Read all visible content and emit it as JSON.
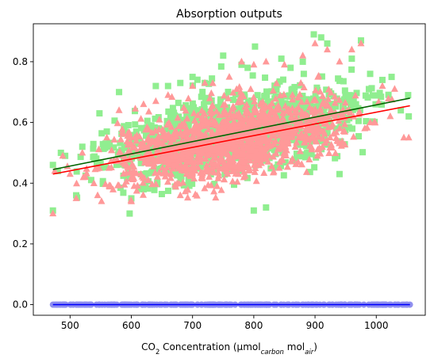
{
  "chart_data": {
    "type": "scatter",
    "title": "Absorption outputs",
    "xlabel": {
      "parts": [
        "CO",
        "2",
        " Concentration (μmol",
        "carbon",
        " mol",
        "air",
        ")"
      ]
    },
    "ylabel": "",
    "xlim": [
      440,
      1080
    ],
    "ylim": [
      -0.035,
      0.925
    ],
    "x_ticks": [
      500,
      600,
      700,
      800,
      900,
      1000
    ],
    "y_ticks": [
      0.0,
      0.2,
      0.4,
      0.6,
      0.8
    ],
    "y_tick_labels": [
      "0.0",
      "0.2",
      "0.4",
      "0.6",
      "0.8"
    ],
    "grid": false,
    "legend": "none",
    "series": [
      {
        "marker": "square",
        "color": "#90ee90",
        "x_range": [
          472,
          1055
        ],
        "points_sample": [
          [
            472,
            0.46
          ],
          [
            472,
            0.31
          ],
          [
            480,
            0.44
          ],
          [
            485,
            0.5
          ],
          [
            492,
            0.49
          ],
          [
            510,
            0.36
          ],
          [
            520,
            0.52
          ],
          [
            540,
            0.48
          ],
          [
            548,
            0.63
          ],
          [
            560,
            0.57
          ],
          [
            580,
            0.7
          ],
          [
            600,
            0.35
          ],
          [
            620,
            0.38
          ],
          [
            640,
            0.72
          ],
          [
            660,
            0.72
          ],
          [
            680,
            0.73
          ],
          [
            700,
            0.75
          ],
          [
            720,
            0.73
          ],
          [
            750,
            0.82
          ],
          [
            780,
            0.79
          ],
          [
            790,
            0.78
          ],
          [
            802,
            0.85
          ],
          [
            800,
            0.31
          ],
          [
            820,
            0.32
          ],
          [
            845,
            0.81
          ],
          [
            860,
            0.78
          ],
          [
            880,
            0.8
          ],
          [
            898,
            0.89
          ],
          [
            910,
            0.88
          ],
          [
            920,
            0.86
          ],
          [
            940,
            0.43
          ],
          [
            960,
            0.81
          ],
          [
            975,
            0.87
          ],
          [
            990,
            0.76
          ],
          [
            1010,
            0.74
          ],
          [
            1025,
            0.75
          ],
          [
            1040,
            0.64
          ],
          [
            1052,
            0.69
          ],
          [
            1053,
            0.62
          ]
        ],
        "trend": {
          "x": [
            472,
            1055
          ],
          "y": [
            0.445,
            0.68
          ],
          "color": "#006400"
        }
      },
      {
        "marker": "triangle",
        "color": "#ff9999",
        "x_range": [
          472,
          1055
        ],
        "points_sample": [
          [
            472,
            0.3
          ],
          [
            475,
            0.44
          ],
          [
            488,
            0.49
          ],
          [
            500,
            0.43
          ],
          [
            510,
            0.35
          ],
          [
            520,
            0.5
          ],
          [
            545,
            0.36
          ],
          [
            560,
            0.55
          ],
          [
            580,
            0.64
          ],
          [
            600,
            0.34
          ],
          [
            620,
            0.66
          ],
          [
            640,
            0.67
          ],
          [
            660,
            0.69
          ],
          [
            680,
            0.36
          ],
          [
            700,
            0.72
          ],
          [
            720,
            0.73
          ],
          [
            740,
            0.39
          ],
          [
            760,
            0.75
          ],
          [
            780,
            0.8
          ],
          [
            800,
            0.79
          ],
          [
            820,
            0.8
          ],
          [
            850,
            0.79
          ],
          [
            880,
            0.82
          ],
          [
            900,
            0.86
          ],
          [
            920,
            0.84
          ],
          [
            940,
            0.8
          ],
          [
            960,
            0.84
          ],
          [
            975,
            0.86
          ],
          [
            990,
            0.6
          ],
          [
            1010,
            0.72
          ],
          [
            1030,
            0.71
          ],
          [
            1045,
            0.55
          ],
          [
            1053,
            0.55
          ]
        ],
        "trend": {
          "x": [
            472,
            1055
          ],
          "y": [
            0.43,
            0.655
          ],
          "color": "#ff0000"
        }
      },
      {
        "marker": "circle",
        "color": "#8f8fef",
        "x_range": [
          472,
          1055
        ],
        "y_constant": 0.0,
        "trend": {
          "x": [
            472,
            1055
          ],
          "y": [
            0.0,
            0.0
          ],
          "color": "#0000ff"
        }
      }
    ]
  }
}
